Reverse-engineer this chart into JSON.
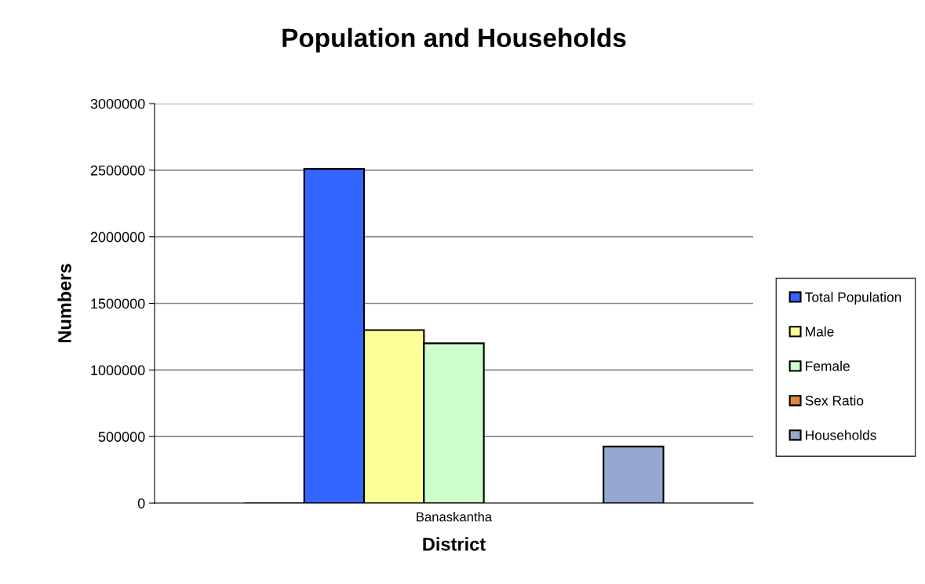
{
  "chart_data": {
    "type": "bar",
    "title": "Population and Households",
    "xlabel": "District",
    "ylabel": "Numbers",
    "categories": [
      "Banaskantha"
    ],
    "series": [
      {
        "color": "#000000",
        "values": [
          0
        ]
      },
      {
        "name": "Total Population",
        "color": "#3366ff",
        "values": [
          2510000
        ]
      },
      {
        "name": "Male",
        "color": "#ffff99",
        "values": [
          1300000
        ]
      },
      {
        "name": "Female",
        "color": "#ccffcc",
        "values": [
          1200000
        ]
      },
      {
        "name": "Sex Ratio",
        "color": "#dd8844",
        "values": [
          null
        ]
      },
      {
        "values": [
          null
        ]
      },
      {
        "name": "Households",
        "color": "#95a9d0",
        "values": [
          425000
        ]
      }
    ],
    "ylim": [
      0,
      3000000
    ],
    "yticks": [
      0,
      500000,
      1000000,
      1500000,
      2000000,
      2500000,
      3000000
    ],
    "grid": "y",
    "legend": "right"
  }
}
